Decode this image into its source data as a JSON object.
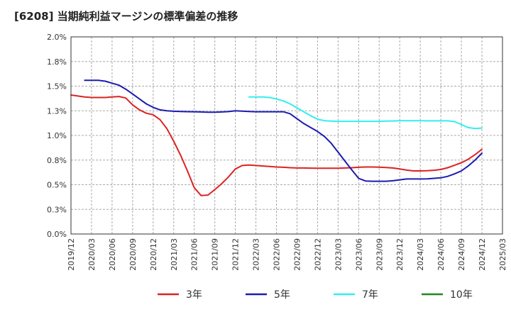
{
  "title": "[6208]  当期純利益マージンの標準偏差の推移",
  "chart_data": {
    "type": "line",
    "ylim": [
      0,
      2.0
    ],
    "y_ticks": [
      "0.0%",
      "0.3%",
      "0.5%",
      "0.8%",
      "1.0%",
      "1.3%",
      "1.5%",
      "1.8%",
      "2.0%"
    ],
    "x_ticks": [
      "2019/12",
      "2020/03",
      "2020/06",
      "2020/09",
      "2020/12",
      "2021/03",
      "2021/06",
      "2021/09",
      "2021/12",
      "2022/03",
      "2022/06",
      "2022/09",
      "2022/12",
      "2023/03",
      "2023/06",
      "2023/09",
      "2023/12",
      "2024/03",
      "2024/06",
      "2024/09",
      "2024/12",
      "2025/03"
    ],
    "grid": true,
    "legend_position": "bottom",
    "series": [
      {
        "name": "3年",
        "color": "#dd2222",
        "points": [
          [
            "2019/12",
            1.41
          ],
          [
            "2020/01",
            1.4
          ],
          [
            "2020/02",
            1.39
          ],
          [
            "2020/03",
            1.385
          ],
          [
            "2020/04",
            1.385
          ],
          [
            "2020/05",
            1.385
          ],
          [
            "2020/06",
            1.39
          ],
          [
            "2020/07",
            1.395
          ],
          [
            "2020/08",
            1.38
          ],
          [
            "2020/09",
            1.31
          ],
          [
            "2020/10",
            1.26
          ],
          [
            "2020/11",
            1.225
          ],
          [
            "2020/12",
            1.21
          ],
          [
            "2021/01",
            1.16
          ],
          [
            "2021/02",
            1.07
          ],
          [
            "2021/03",
            0.94
          ],
          [
            "2021/04",
            0.8
          ],
          [
            "2021/05",
            0.64
          ],
          [
            "2021/06",
            0.47
          ],
          [
            "2021/07",
            0.39
          ],
          [
            "2021/08",
            0.395
          ],
          [
            "2021/09",
            0.45
          ],
          [
            "2021/10",
            0.51
          ],
          [
            "2021/11",
            0.58
          ],
          [
            "2021/12",
            0.66
          ],
          [
            "2022/01",
            0.695
          ],
          [
            "2022/02",
            0.7
          ],
          [
            "2022/03",
            0.695
          ],
          [
            "2022/04",
            0.69
          ],
          [
            "2022/05",
            0.685
          ],
          [
            "2022/06",
            0.68
          ],
          [
            "2022/07",
            0.677
          ],
          [
            "2022/08",
            0.673
          ],
          [
            "2022/09",
            0.67
          ],
          [
            "2022/10",
            0.67
          ],
          [
            "2022/11",
            0.668
          ],
          [
            "2022/12",
            0.667
          ],
          [
            "2023/01",
            0.667
          ],
          [
            "2023/02",
            0.667
          ],
          [
            "2023/03",
            0.667
          ],
          [
            "2023/04",
            0.67
          ],
          [
            "2023/05",
            0.673
          ],
          [
            "2023/06",
            0.677
          ],
          [
            "2023/07",
            0.68
          ],
          [
            "2023/08",
            0.68
          ],
          [
            "2023/09",
            0.678
          ],
          [
            "2023/10",
            0.675
          ],
          [
            "2023/11",
            0.67
          ],
          [
            "2023/12",
            0.66
          ],
          [
            "2024/01",
            0.648
          ],
          [
            "2024/02",
            0.64
          ],
          [
            "2024/03",
            0.64
          ],
          [
            "2024/04",
            0.642
          ],
          [
            "2024/05",
            0.647
          ],
          [
            "2024/06",
            0.655
          ],
          [
            "2024/07",
            0.673
          ],
          [
            "2024/08",
            0.697
          ],
          [
            "2024/09",
            0.723
          ],
          [
            "2024/10",
            0.758
          ],
          [
            "2024/11",
            0.805
          ],
          [
            "2024/12",
            0.86
          ]
        ]
      },
      {
        "name": "5年",
        "color": "#1c1cb0",
        "points": [
          [
            "2020/02",
            1.56
          ],
          [
            "2020/03",
            1.56
          ],
          [
            "2020/04",
            1.56
          ],
          [
            "2020/05",
            1.55
          ],
          [
            "2020/06",
            1.53
          ],
          [
            "2020/07",
            1.51
          ],
          [
            "2020/08",
            1.47
          ],
          [
            "2020/09",
            1.42
          ],
          [
            "2020/10",
            1.37
          ],
          [
            "2020/11",
            1.32
          ],
          [
            "2020/12",
            1.285
          ],
          [
            "2021/01",
            1.26
          ],
          [
            "2021/02",
            1.25
          ],
          [
            "2021/03",
            1.245
          ],
          [
            "2021/04",
            1.243
          ],
          [
            "2021/05",
            1.241
          ],
          [
            "2021/06",
            1.24
          ],
          [
            "2021/07",
            1.238
          ],
          [
            "2021/08",
            1.236
          ],
          [
            "2021/09",
            1.236
          ],
          [
            "2021/10",
            1.238
          ],
          [
            "2021/11",
            1.242
          ],
          [
            "2021/12",
            1.25
          ],
          [
            "2022/01",
            1.247
          ],
          [
            "2022/02",
            1.243
          ],
          [
            "2022/03",
            1.24
          ],
          [
            "2022/04",
            1.24
          ],
          [
            "2022/05",
            1.24
          ],
          [
            "2022/06",
            1.24
          ],
          [
            "2022/07",
            1.24
          ],
          [
            "2022/08",
            1.22
          ],
          [
            "2022/09",
            1.17
          ],
          [
            "2022/10",
            1.12
          ],
          [
            "2022/11",
            1.08
          ],
          [
            "2022/12",
            1.04
          ],
          [
            "2023/01",
            0.99
          ],
          [
            "2023/02",
            0.92
          ],
          [
            "2023/03",
            0.83
          ],
          [
            "2023/04",
            0.74
          ],
          [
            "2023/05",
            0.65
          ],
          [
            "2023/06",
            0.565
          ],
          [
            "2023/07",
            0.538
          ],
          [
            "2023/08",
            0.535
          ],
          [
            "2023/09",
            0.535
          ],
          [
            "2023/10",
            0.535
          ],
          [
            "2023/11",
            0.54
          ],
          [
            "2023/12",
            0.55
          ],
          [
            "2024/01",
            0.558
          ],
          [
            "2024/02",
            0.558
          ],
          [
            "2024/03",
            0.558
          ],
          [
            "2024/04",
            0.56
          ],
          [
            "2024/05",
            0.565
          ],
          [
            "2024/06",
            0.57
          ],
          [
            "2024/07",
            0.585
          ],
          [
            "2024/08",
            0.61
          ],
          [
            "2024/09",
            0.64
          ],
          [
            "2024/10",
            0.69
          ],
          [
            "2024/11",
            0.75
          ],
          [
            "2024/12",
            0.82
          ]
        ]
      },
      {
        "name": "7年",
        "color": "#33eeee",
        "points": [
          [
            "2022/02",
            1.39
          ],
          [
            "2022/03",
            1.39
          ],
          [
            "2022/04",
            1.39
          ],
          [
            "2022/05",
            1.385
          ],
          [
            "2022/06",
            1.37
          ],
          [
            "2022/07",
            1.35
          ],
          [
            "2022/08",
            1.32
          ],
          [
            "2022/09",
            1.28
          ],
          [
            "2022/10",
            1.24
          ],
          [
            "2022/11",
            1.2
          ],
          [
            "2022/12",
            1.165
          ],
          [
            "2023/01",
            1.15
          ],
          [
            "2023/02",
            1.145
          ],
          [
            "2023/03",
            1.143
          ],
          [
            "2023/04",
            1.143
          ],
          [
            "2023/05",
            1.143
          ],
          [
            "2023/06",
            1.143
          ],
          [
            "2023/07",
            1.143
          ],
          [
            "2023/08",
            1.143
          ],
          [
            "2023/09",
            1.143
          ],
          [
            "2023/10",
            1.145
          ],
          [
            "2023/11",
            1.147
          ],
          [
            "2023/12",
            1.15
          ],
          [
            "2024/01",
            1.15
          ],
          [
            "2024/02",
            1.15
          ],
          [
            "2024/03",
            1.15
          ],
          [
            "2024/04",
            1.148
          ],
          [
            "2024/05",
            1.148
          ],
          [
            "2024/06",
            1.148
          ],
          [
            "2024/07",
            1.148
          ],
          [
            "2024/08",
            1.14
          ],
          [
            "2024/09",
            1.11
          ],
          [
            "2024/10",
            1.08
          ],
          [
            "2024/11",
            1.07
          ],
          [
            "2024/12",
            1.075
          ]
        ]
      },
      {
        "name": "10年",
        "color": "#228822",
        "points": []
      }
    ]
  }
}
